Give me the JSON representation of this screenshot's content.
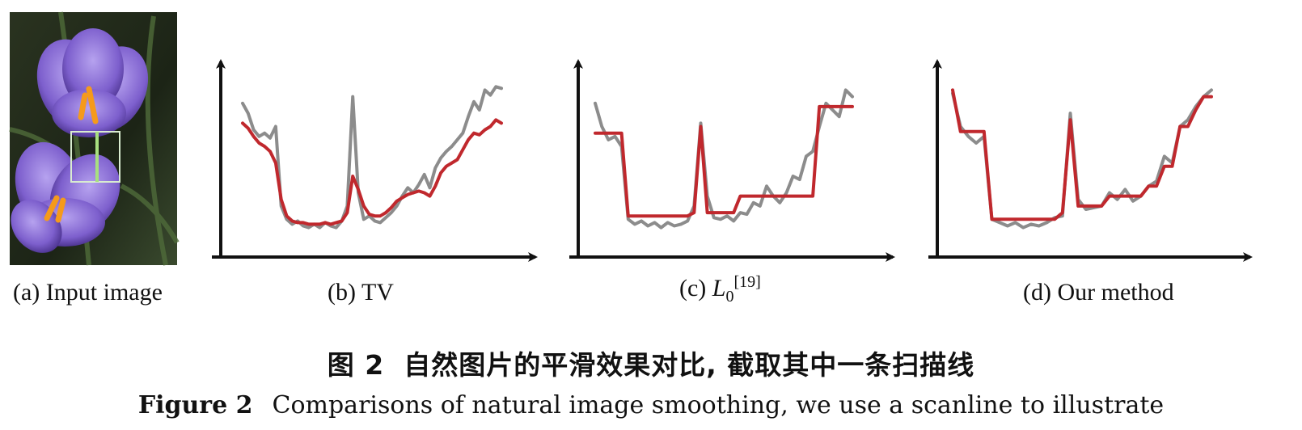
{
  "panels": [
    {
      "id": "a",
      "caption": "(a) Input image"
    },
    {
      "id": "b",
      "caption": "(b) TV"
    },
    {
      "id": "c",
      "caption_prefix": "(c) ",
      "caption_var": "L",
      "caption_sub": "0",
      "caption_sup": "[19]"
    },
    {
      "id": "d",
      "caption": "(d) Our method"
    }
  ],
  "caption_cn": {
    "label": "图 2",
    "text": "自然图片的平滑效果对比, 截取其中一条扫描线"
  },
  "caption_en": {
    "label": "Figure 2",
    "text": "Comparisons of natural image smoothing, we use a scanline to illustrate"
  },
  "colors": {
    "original": "#8c8c8c",
    "smoothed": "#c0282d",
    "axis": "#111111",
    "flower": "#8a6fd0",
    "highlight": "#b7e3a0"
  },
  "chart_data": [
    {
      "type": "line",
      "series": [
        {
          "values": [
            0.84,
            0.78,
            0.68,
            0.64,
            0.66,
            0.63,
            0.7,
            0.22,
            0.14,
            0.11,
            0.13,
            0.1,
            0.09,
            0.11,
            0.09,
            0.12,
            0.1,
            0.09,
            0.13,
            0.22,
            0.88,
            0.3,
            0.14,
            0.16,
            0.13,
            0.12,
            0.15,
            0.18,
            0.22,
            0.28,
            0.33,
            0.3,
            0.35,
            0.41,
            0.33,
            0.45,
            0.51,
            0.55,
            0.58,
            0.62,
            0.66,
            0.76,
            0.85,
            0.8,
            0.92,
            0.89,
            0.94,
            0.93
          ]
        },
        {
          "values": [
            0.72,
            0.69,
            0.64,
            0.6,
            0.58,
            0.55,
            0.48,
            0.26,
            0.16,
            0.13,
            0.12,
            0.12,
            0.11,
            0.11,
            0.11,
            0.12,
            0.11,
            0.12,
            0.13,
            0.18,
            0.4,
            0.32,
            0.22,
            0.17,
            0.16,
            0.16,
            0.18,
            0.21,
            0.25,
            0.27,
            0.29,
            0.3,
            0.31,
            0.3,
            0.28,
            0.34,
            0.42,
            0.46,
            0.48,
            0.5,
            0.56,
            0.62,
            0.66,
            0.65,
            0.68,
            0.7,
            0.74,
            0.72
          ]
        }
      ]
    },
    {
      "type": "line",
      "series": [
        {
          "values": [
            0.84,
            0.7,
            0.62,
            0.64,
            0.58,
            0.14,
            0.11,
            0.13,
            0.1,
            0.12,
            0.09,
            0.12,
            0.1,
            0.11,
            0.13,
            0.22,
            0.72,
            0.28,
            0.15,
            0.14,
            0.16,
            0.13,
            0.18,
            0.17,
            0.24,
            0.22,
            0.34,
            0.28,
            0.24,
            0.3,
            0.4,
            0.38,
            0.52,
            0.55,
            0.7,
            0.84,
            0.8,
            0.76,
            0.92,
            0.88
          ]
        },
        {
          "values": [
            0.66,
            0.66,
            0.66,
            0.66,
            0.66,
            0.16,
            0.16,
            0.16,
            0.16,
            0.16,
            0.16,
            0.16,
            0.16,
            0.16,
            0.16,
            0.18,
            0.7,
            0.18,
            0.18,
            0.18,
            0.18,
            0.18,
            0.28,
            0.28,
            0.28,
            0.28,
            0.28,
            0.28,
            0.28,
            0.28,
            0.28,
            0.28,
            0.28,
            0.28,
            0.82,
            0.82,
            0.82,
            0.82,
            0.82,
            0.82
          ]
        }
      ]
    },
    {
      "type": "line",
      "series": [
        {
          "values": [
            0.9,
            0.7,
            0.64,
            0.6,
            0.64,
            0.14,
            0.12,
            0.1,
            0.12,
            0.09,
            0.11,
            0.1,
            0.12,
            0.15,
            0.16,
            0.78,
            0.26,
            0.2,
            0.21,
            0.22,
            0.3,
            0.26,
            0.32,
            0.25,
            0.28,
            0.34,
            0.37,
            0.52,
            0.48,
            0.7,
            0.74,
            0.82,
            0.88,
            0.92
          ]
        },
        {
          "values": [
            0.92,
            0.67,
            0.67,
            0.67,
            0.67,
            0.14,
            0.14,
            0.14,
            0.14,
            0.14,
            0.14,
            0.14,
            0.14,
            0.14,
            0.18,
            0.74,
            0.22,
            0.22,
            0.22,
            0.22,
            0.28,
            0.28,
            0.28,
            0.28,
            0.28,
            0.34,
            0.34,
            0.46,
            0.46,
            0.7,
            0.7,
            0.8,
            0.88,
            0.88
          ]
        }
      ]
    }
  ]
}
